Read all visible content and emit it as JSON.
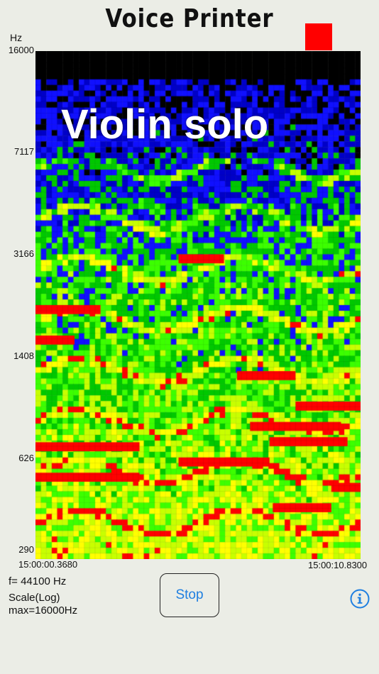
{
  "app": {
    "title": "Voice Printer"
  },
  "colors": {
    "indicator": "#ff0000",
    "accent": "#1f7fe0",
    "background": "#ebede6"
  },
  "spectrogram": {
    "overlay_label": "Violin solo",
    "y_unit": "Hz",
    "y_ticks": [
      "16000",
      "7117",
      "3166",
      "1408",
      "626",
      "290"
    ],
    "time_start": "15:00:00.3680",
    "time_end": "15:00:10.8300",
    "colormap": [
      "#000000",
      "#0000c8",
      "#1010ff",
      "#00c800",
      "#3cff00",
      "#c8ff00",
      "#ffff00",
      "#ff0000"
    ]
  },
  "info": {
    "sample_rate": "f= 44100 Hz",
    "scale": "Scale(Log)",
    "max": "max=16000Hz"
  },
  "controls": {
    "stop_label": "Stop",
    "info_icon": "info-circle-icon"
  }
}
